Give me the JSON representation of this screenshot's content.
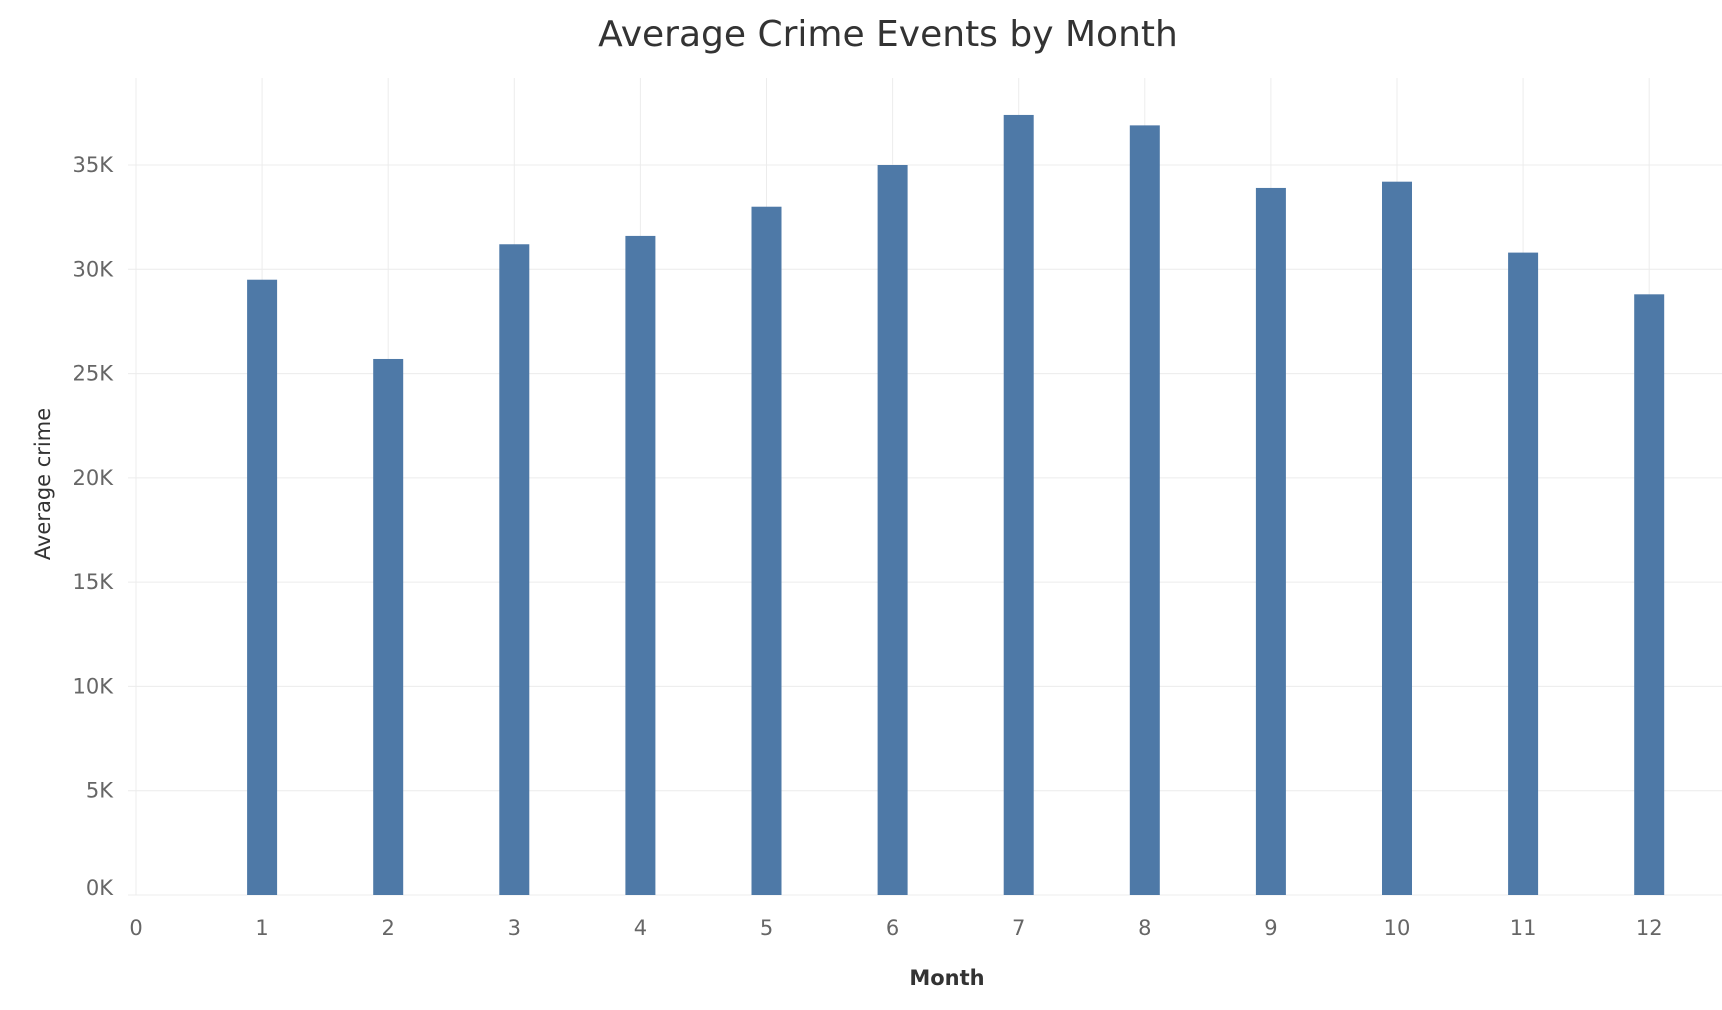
{
  "chart_data": {
    "type": "bar",
    "title": "Average Crime Events by Month",
    "xlabel": "Month",
    "ylabel": "Average crime",
    "x_ticks": [
      "0",
      "1",
      "2",
      "3",
      "4",
      "5",
      "6",
      "7",
      "8",
      "9",
      "10",
      "11",
      "12"
    ],
    "y_ticks": [
      "0K",
      "5K",
      "10K",
      "15K",
      "20K",
      "25K",
      "30K",
      "35K"
    ],
    "categories": [
      "1",
      "2",
      "3",
      "4",
      "5",
      "6",
      "7",
      "8",
      "9",
      "10",
      "11",
      "12"
    ],
    "x": [
      1,
      2,
      3,
      4,
      5,
      6,
      7,
      8,
      9,
      10,
      11,
      12
    ],
    "values": [
      29500,
      25700,
      31200,
      31600,
      33000,
      35000,
      37400,
      36900,
      33900,
      34200,
      30800,
      28800
    ],
    "xlim": [
      0,
      12.6
    ],
    "ylim": [
      0,
      39000
    ],
    "y_tick_values": [
      0,
      5000,
      10000,
      15000,
      20000,
      25000,
      30000,
      35000
    ],
    "grid": true,
    "bar_color": "#4e79a7"
  }
}
